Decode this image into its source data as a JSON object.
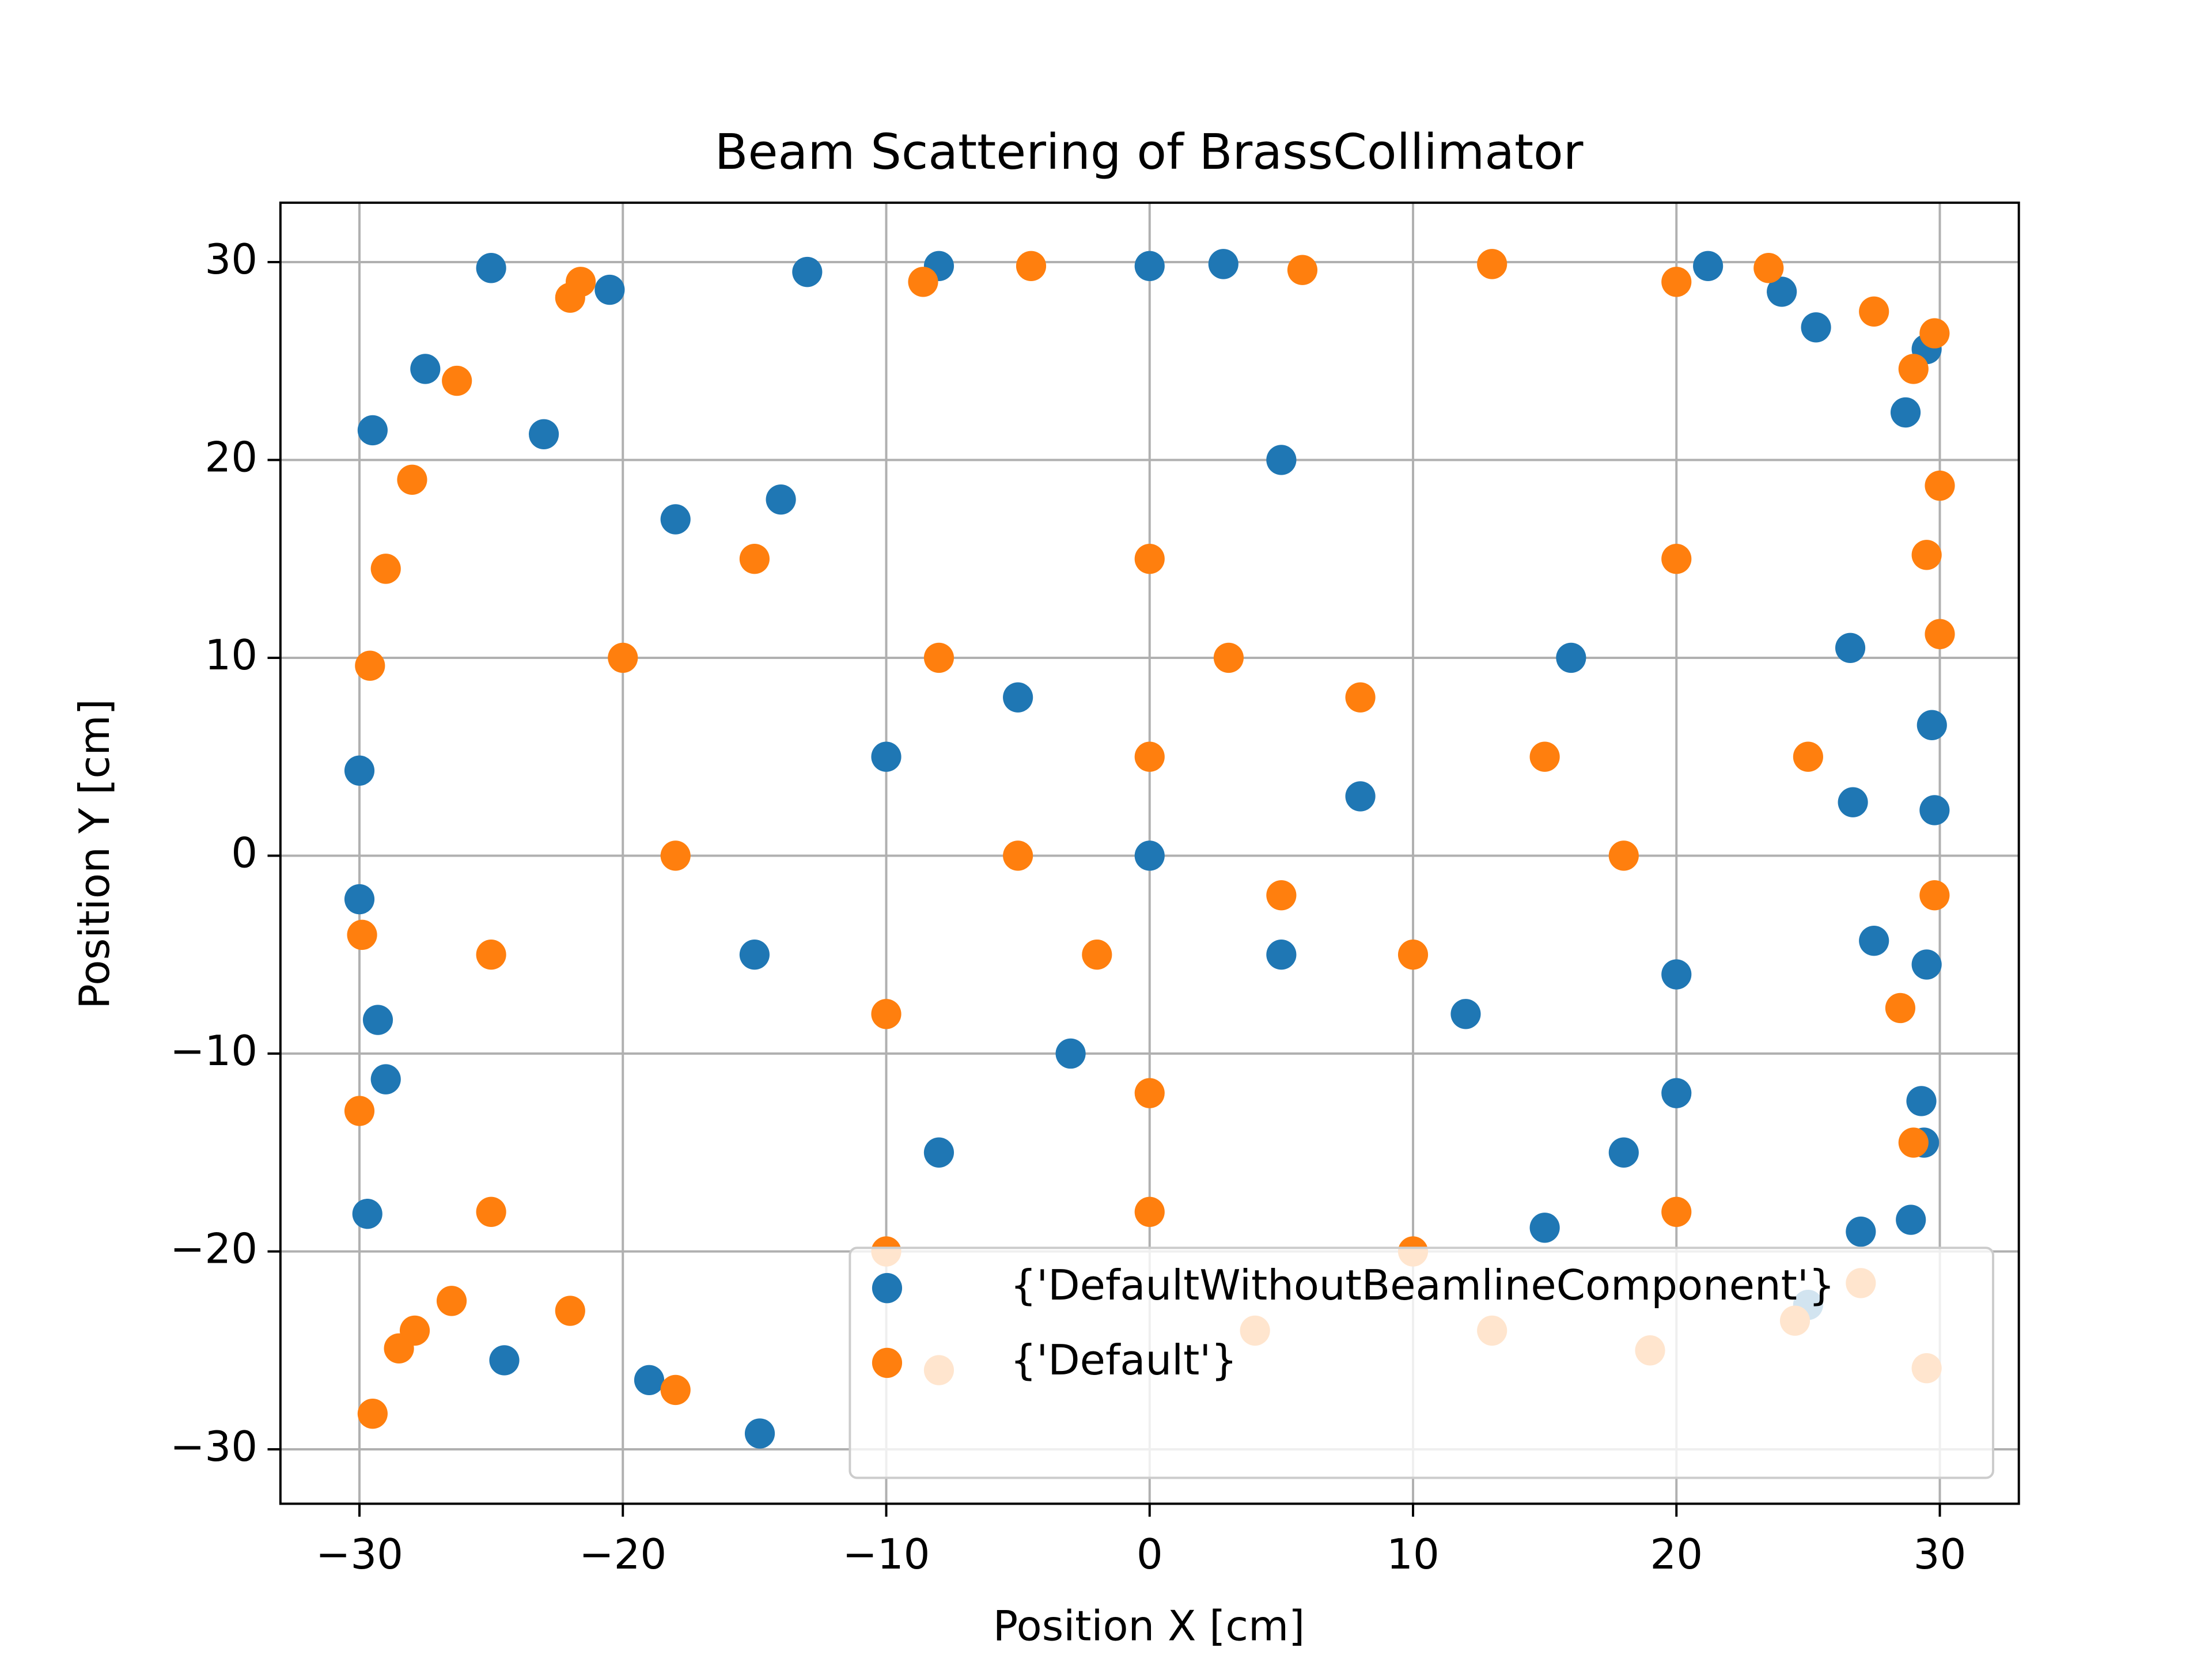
{
  "chart_data": {
    "type": "scatter",
    "title": "Beam Scattering of BrassCollimator",
    "x_label": "Position X [cm]",
    "y_label": "Position Y [cm]",
    "xlim": [
      -33,
      33
    ],
    "ylim": [
      -32.75,
      33
    ],
    "xticks": [
      {
        "value": -30,
        "label": "−30"
      },
      {
        "value": -20,
        "label": "−20"
      },
      {
        "value": -10,
        "label": "−10"
      },
      0,
      10,
      20,
      30
    ],
    "yticks": [
      {
        "value": -30,
        "label": "−30"
      },
      {
        "value": -20,
        "label": "−20"
      },
      {
        "value": -10,
        "label": "−10"
      },
      0,
      10,
      20,
      30
    ],
    "grid": true,
    "legend": "lower right",
    "series": [
      {
        "name": "{'DefaultWithoutBeamlineComponent'}",
        "color": "#1f77b4",
        "x": [
          -25,
          -29.5,
          -30,
          -30,
          -29.3,
          -29,
          -29.7,
          -24.5,
          -14.8,
          21.2,
          24,
          25.3,
          28.7,
          29.5,
          29.7,
          29.8,
          29.5,
          29.3,
          29.4,
          28.9,
          27,
          25,
          27.5,
          26.7,
          26.6,
          20,
          18,
          15,
          -19,
          -8,
          0,
          2.8,
          -13,
          -20.5,
          -27.5,
          -23,
          -18,
          -10,
          0,
          5,
          -5,
          8,
          -3,
          12,
          -15,
          16,
          -8,
          5,
          -14,
          20
        ],
        "values": [
          29.7,
          21.5,
          4.3,
          -2.2,
          -8.3,
          -11.3,
          -18.1,
          -25.5,
          -29.2,
          29.8,
          28.5,
          26.7,
          22.4,
          25.6,
          6.6,
          2.3,
          -5.5,
          -12.4,
          -14.5,
          -18.4,
          -19,
          -22.7,
          -4.3,
          2.7,
          10.5,
          -6,
          -15,
          -18.8,
          -26.5,
          29.8,
          29.8,
          29.9,
          29.5,
          28.6,
          24.6,
          21.3,
          17,
          5,
          0,
          -5,
          8,
          3,
          -10,
          -8,
          -5,
          10,
          -15,
          20,
          18,
          -12
        ]
      },
      {
        "name": "{'Default'}",
        "color": "#ff7f0e",
        "x": [
          -29.5,
          -28.5,
          -27.9,
          -26.5,
          -30,
          -29.9,
          -29.6,
          -29,
          -28,
          -26.3,
          -22,
          -21.6,
          -8.6,
          -4.5,
          5.8,
          13,
          20,
          23.5,
          27.5,
          29,
          29.8,
          30,
          30,
          29.5,
          29.8,
          28.5,
          29,
          27,
          24.5,
          29.5,
          19,
          13,
          4,
          -8,
          -18,
          -22,
          -25,
          -10,
          0,
          10,
          20,
          -20,
          -15,
          20,
          15,
          -5,
          0,
          5,
          -2,
          3,
          -8,
          10,
          8,
          -10,
          0,
          0,
          -18,
          18,
          25,
          -25
        ],
        "values": [
          -28.2,
          -24.9,
          -24,
          -22.5,
          -12.9,
          -4,
          9.6,
          14.5,
          19,
          24,
          28.2,
          29,
          29,
          29.8,
          29.6,
          29.9,
          29,
          29.7,
          27.5,
          24.6,
          26.4,
          18.7,
          11.2,
          15.2,
          -2,
          -7.7,
          -14.5,
          -21.6,
          -23.5,
          -25.9,
          -25,
          -24,
          -24,
          -26,
          -27,
          -23,
          -18,
          -20,
          -18,
          -20,
          -18,
          10,
          15,
          15,
          5,
          0,
          5,
          -2,
          -5,
          10,
          10,
          -5,
          8,
          -8,
          15,
          -12,
          0,
          0,
          5,
          -5
        ]
      }
    ]
  }
}
